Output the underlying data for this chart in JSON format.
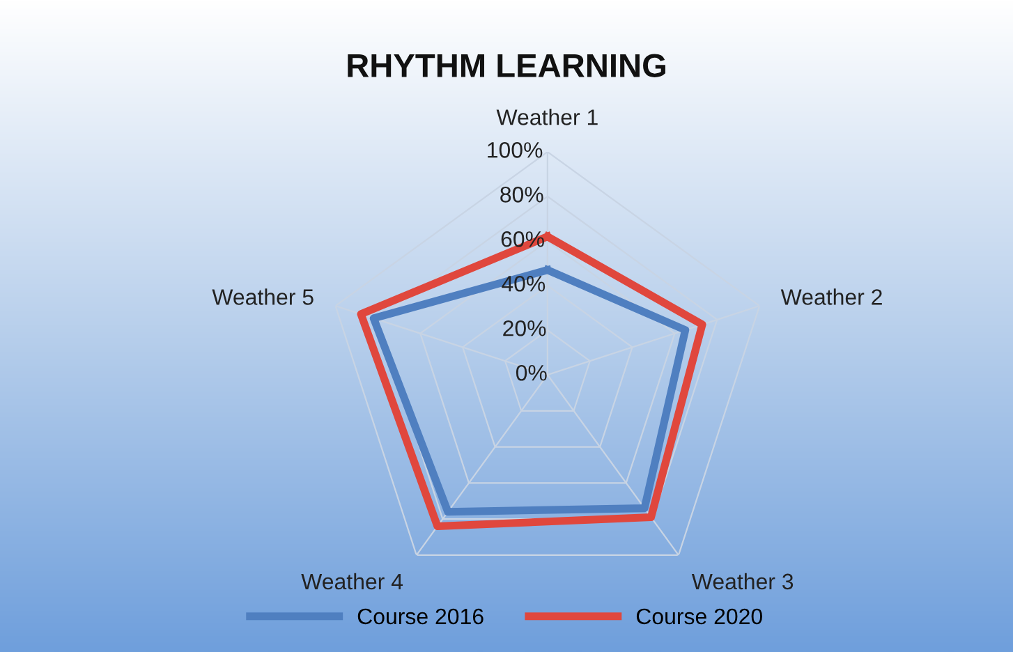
{
  "chart_data": {
    "type": "radar",
    "title": "RHYTHM LEARNING",
    "categories": [
      "Weather 1",
      "Weather 2",
      "Weather 3",
      "Weather 4",
      "Weather 5"
    ],
    "series": [
      {
        "name": "Course 2016",
        "color": "#4f7fc0",
        "values": [
          47,
          65,
          74,
          76,
          82
        ]
      },
      {
        "name": "Course 2020",
        "color": "#e0473d",
        "values": [
          62,
          73,
          79,
          84,
          88
        ]
      }
    ],
    "ylim": [
      0,
      100
    ],
    "yticks": [
      {
        "value": 0,
        "label": "0%"
      },
      {
        "value": 20,
        "label": "20%"
      },
      {
        "value": 40,
        "label": "40%"
      },
      {
        "value": 60,
        "label": "60%"
      },
      {
        "value": 80,
        "label": "80%"
      },
      {
        "value": 100,
        "label": "100%"
      }
    ],
    "grid": true,
    "legend": "bottom"
  }
}
